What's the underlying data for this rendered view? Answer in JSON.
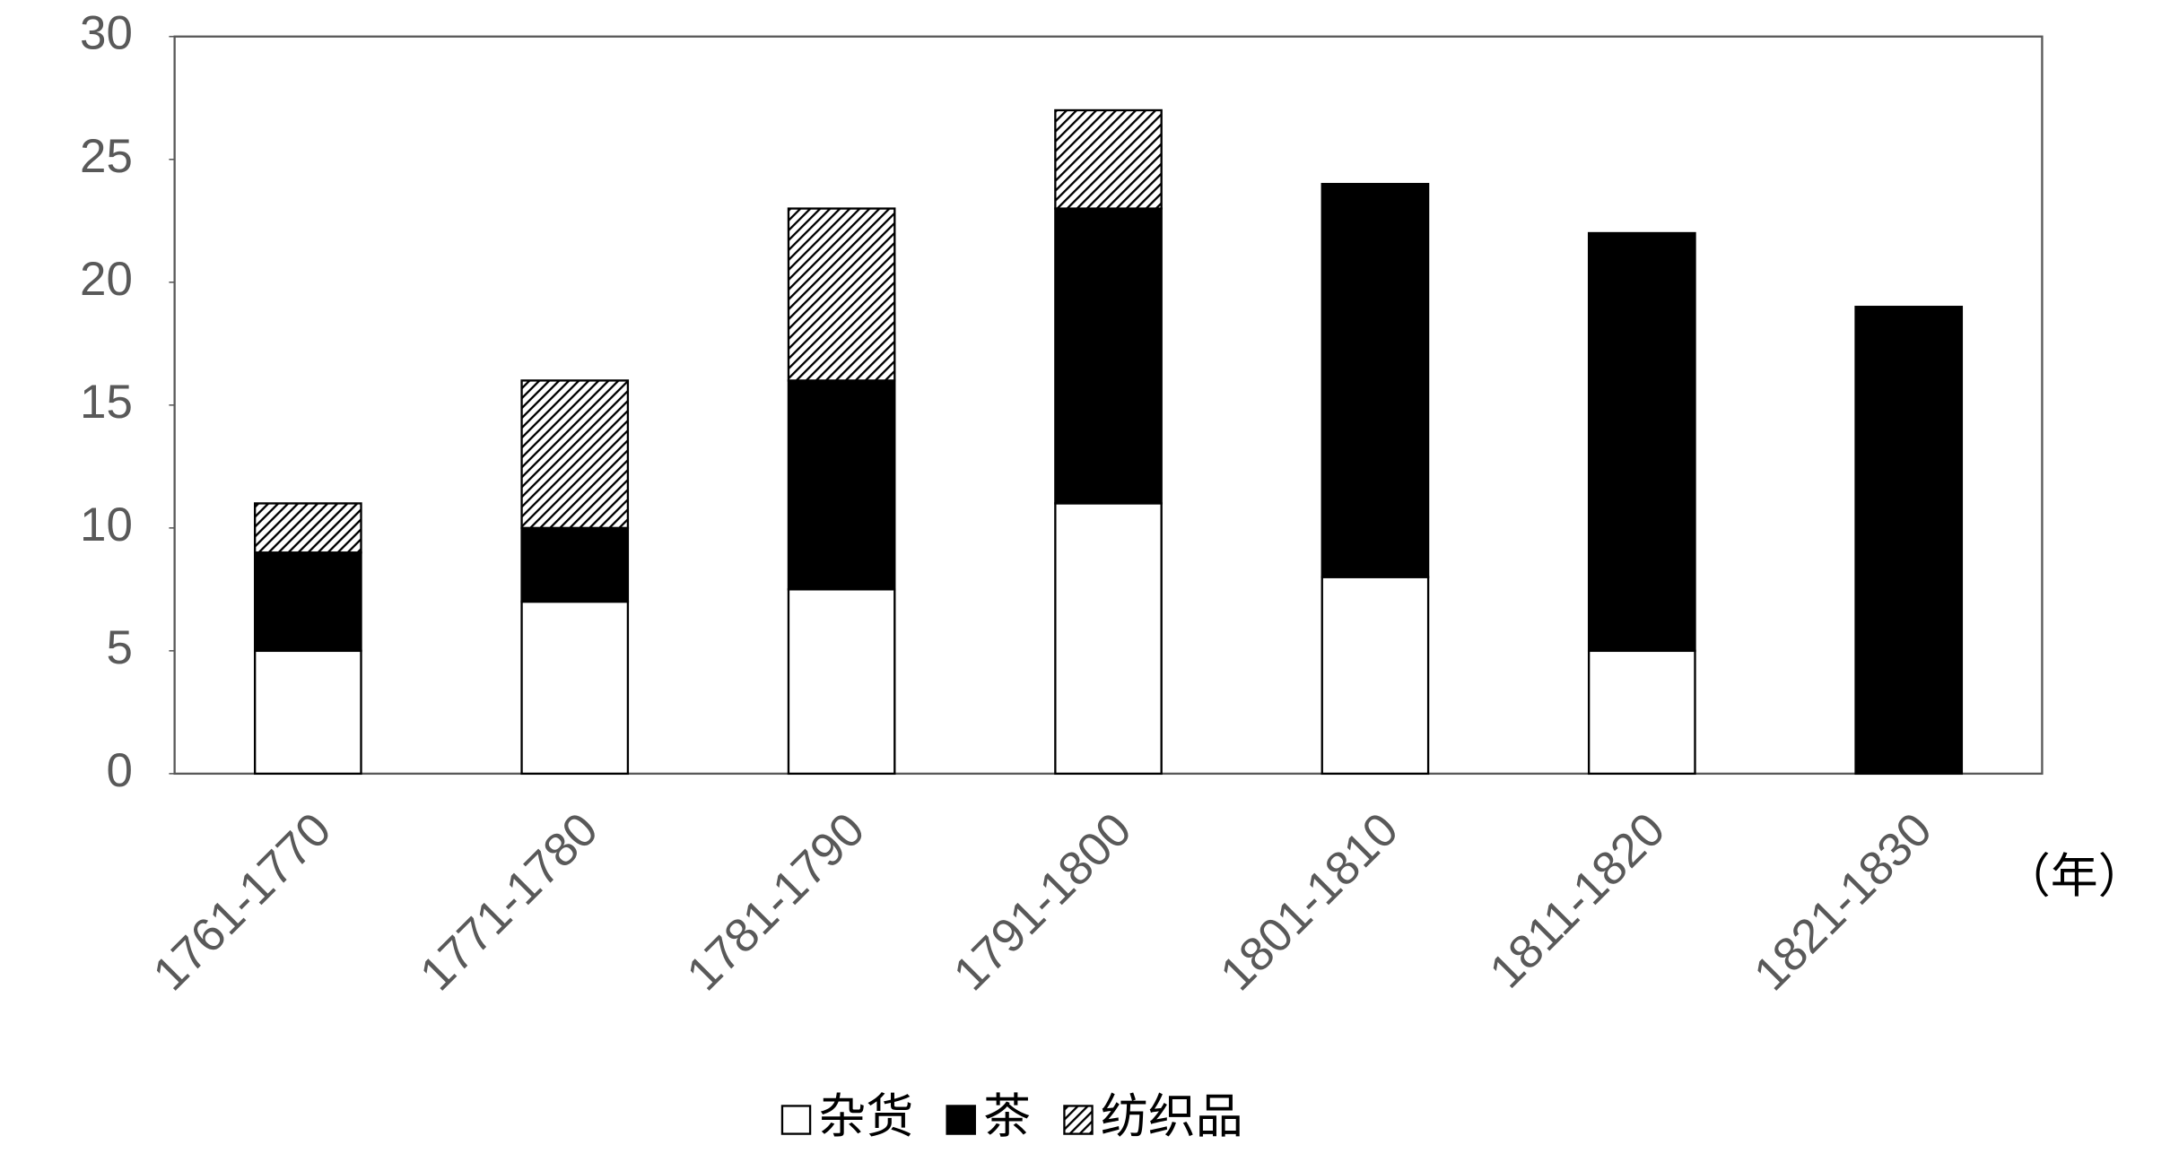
{
  "chart_data": {
    "type": "stacked-bar",
    "categories": [
      "1761-1770",
      "1771-1780",
      "1781-1790",
      "1791-1800",
      "1801-1810",
      "1811-1820",
      "1821-1830"
    ],
    "series": [
      {
        "name": "杂货",
        "color": "#ffffff",
        "values": [
          5,
          7,
          7.5,
          11,
          8,
          5,
          0
        ]
      },
      {
        "name": "茶",
        "color": "#000000",
        "values": [
          4,
          3,
          8.5,
          12,
          16,
          17,
          19
        ]
      },
      {
        "name": "纺织品",
        "color": "#000000",
        "hatch": true,
        "values": [
          2,
          6,
          7,
          4,
          0,
          0,
          0
        ]
      }
    ],
    "x_unit_annotation": "（年）",
    "ylim": [
      0,
      30
    ],
    "yticks": [
      0,
      5,
      10,
      15,
      20,
      25,
      30
    ],
    "grid": false,
    "legend": "bottom"
  }
}
